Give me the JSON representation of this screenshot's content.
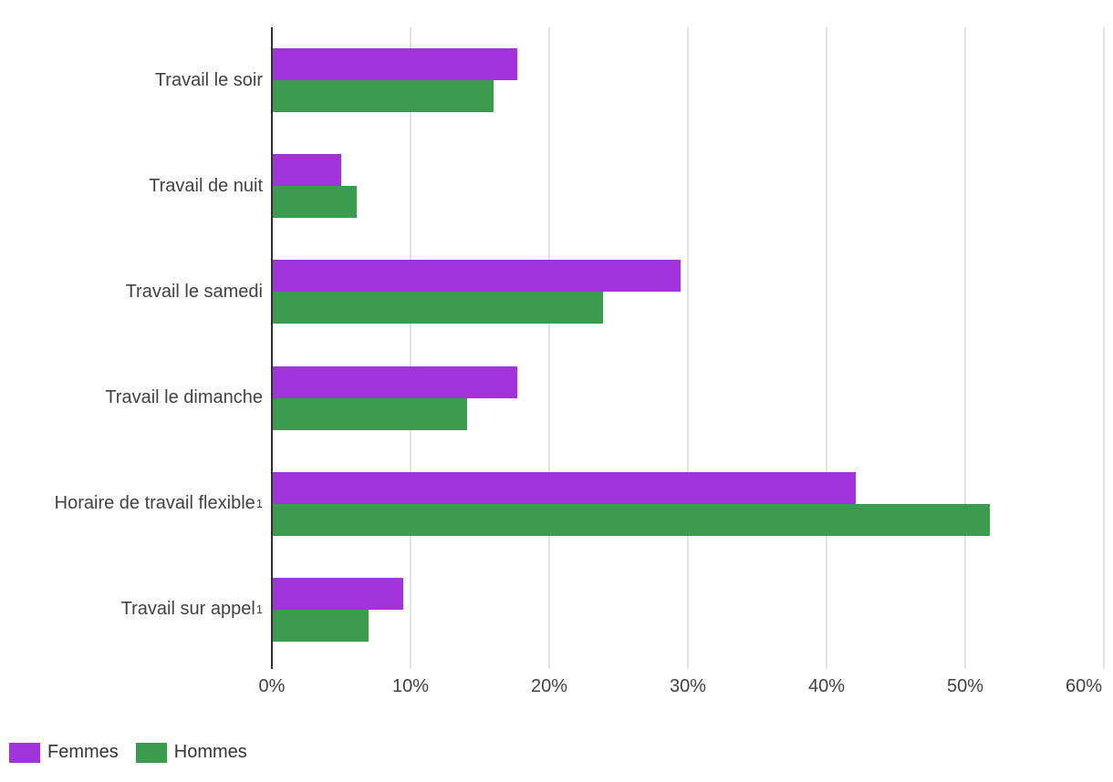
{
  "chart_data": {
    "type": "bar",
    "orientation": "horizontal",
    "title": "",
    "xlabel": "",
    "ylabel": "",
    "xlim": [
      0,
      60
    ],
    "x_ticks": [
      "0%",
      "10%",
      "20%",
      "30%",
      "40%",
      "50%",
      "60%"
    ],
    "grid": true,
    "legend_position": "bottom-left",
    "categories": [
      "Travail le soir",
      "Travail de nuit",
      "Travail le samedi",
      "Travail le dimanche",
      "Horaire de travail flexible",
      "Travail sur appel"
    ],
    "category_superscripts": [
      "",
      "",
      "",
      "",
      "1",
      "1"
    ],
    "series": [
      {
        "name": "Femmes",
        "color": "#a233db",
        "values": [
          17.7,
          5.0,
          29.5,
          17.7,
          42.1,
          9.5
        ]
      },
      {
        "name": "Hommes",
        "color": "#3b9c4e",
        "values": [
          16.0,
          6.1,
          23.9,
          14.1,
          51.8,
          7.0
        ]
      }
    ],
    "colors": {
      "femmes": "#a233db",
      "hommes": "#3b9c4e",
      "axis": "#2f2f2f",
      "gridline": "#e2e2e2",
      "text": "#424242"
    }
  }
}
